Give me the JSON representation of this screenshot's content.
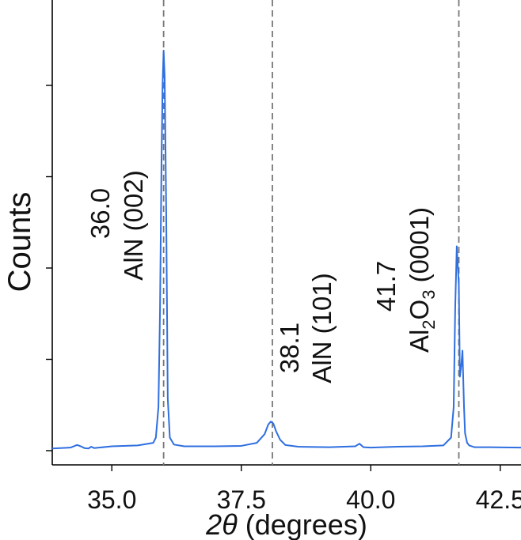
{
  "chart_data": {
    "type": "line",
    "title": "",
    "xlabel_symbol": "2θ",
    "xlabel_rest": " (degrees)",
    "ylabel": "Counts",
    "xlim": [
      33.85,
      42.9
    ],
    "ylim": [
      0,
      1.0
    ],
    "x_ticks": [
      35.0,
      37.5,
      40.0,
      42.5
    ],
    "x_tick_labels": [
      "35.0",
      "37.5",
      "40.0",
      "42.5"
    ],
    "y_ticks": [
      0.0,
      0.21,
      0.42,
      0.63,
      0.84
    ],
    "grid": false,
    "series": [
      {
        "color": "#2f6fe0",
        "x": [
          33.85,
          34.2,
          34.33,
          34.4,
          34.47,
          34.55,
          34.6,
          34.66,
          34.75,
          35.0,
          35.5,
          35.8,
          35.85,
          35.9,
          35.93,
          35.96,
          35.98,
          36.0,
          36.02,
          36.05,
          36.08,
          36.12,
          36.2,
          36.4,
          37.0,
          37.5,
          37.8,
          37.95,
          38.02,
          38.07,
          38.12,
          38.17,
          38.25,
          38.35,
          38.6,
          39.2,
          39.7,
          39.78,
          39.86,
          40.0,
          40.5,
          41.0,
          41.4,
          41.55,
          41.6,
          41.63,
          41.66,
          41.7,
          41.72,
          41.75,
          41.77,
          41.8,
          41.82,
          41.86,
          41.9,
          42.0,
          42.3,
          42.9
        ],
        "y": [
          0.005,
          0.007,
          0.013,
          0.01,
          0.006,
          0.005,
          0.009,
          0.006,
          0.007,
          0.01,
          0.012,
          0.018,
          0.03,
          0.1,
          0.32,
          0.67,
          0.84,
          0.92,
          0.86,
          0.55,
          0.12,
          0.03,
          0.014,
          0.01,
          0.01,
          0.011,
          0.018,
          0.038,
          0.06,
          0.067,
          0.062,
          0.045,
          0.025,
          0.013,
          0.009,
          0.008,
          0.01,
          0.016,
          0.008,
          0.007,
          0.009,
          0.01,
          0.012,
          0.03,
          0.1,
          0.33,
          0.47,
          0.38,
          0.17,
          0.2,
          0.23,
          0.1,
          0.04,
          0.018,
          0.012,
          0.008,
          0.008,
          0.007
        ]
      }
    ],
    "reference_lines": [
      {
        "x": 36.0,
        "value_label": "36.0",
        "name_label": "AlN (002)"
      },
      {
        "x": 38.1,
        "value_label": "38.1",
        "name_label": "AlN (101)"
      },
      {
        "x": 41.7,
        "value_label": "41.7",
        "name_label_prefix": "Al",
        "name_label_sub1": "2",
        "name_label_mid": "O",
        "name_label_sub2": "3",
        "name_label_suffix": " (0001)"
      }
    ],
    "reference_line_color": "#777777"
  }
}
